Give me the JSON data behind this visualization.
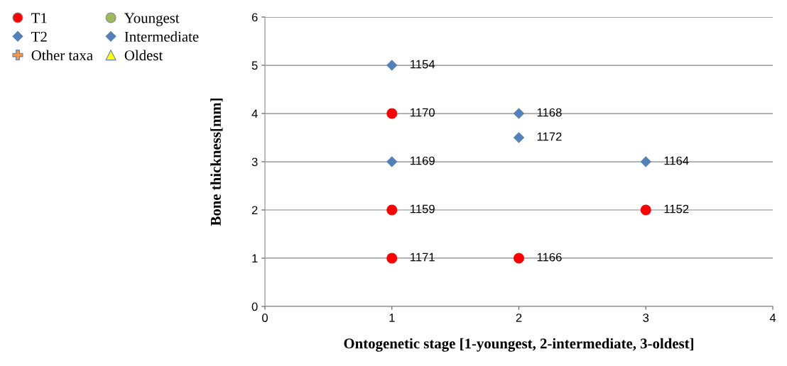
{
  "chart_data": {
    "type": "scatter",
    "xlabel": "Ontogenetic stage [1-youngest, 2-intermediate, 3-oldest]",
    "ylabel": "Bone thickness[mm]",
    "xlim": [
      0,
      4
    ],
    "ylim": [
      0,
      6
    ],
    "xticks": [
      0,
      1,
      2,
      3,
      4
    ],
    "yticks": [
      0,
      1,
      2,
      3,
      4,
      5,
      6
    ],
    "grid": "y",
    "legend": "left",
    "series": [
      {
        "name": "T1",
        "color": "#ff0000",
        "marker": "circle",
        "x": [
          1,
          1,
          1,
          2,
          3
        ],
        "values": [
          4,
          2,
          1,
          1,
          2
        ]
      },
      {
        "name": "T2",
        "color": "#4f81bd",
        "marker": "diamond",
        "x": [
          1,
          1,
          2,
          2,
          3
        ],
        "values": [
          5,
          3,
          4,
          3.5,
          3
        ]
      },
      {
        "name": "Other taxa",
        "color": "#f79646",
        "marker": "cross"
      },
      {
        "name": "Youngest",
        "color": "#9bbb59",
        "marker": "circle"
      },
      {
        "name": "Intermediate",
        "color": "#4f81bd",
        "marker": "diamond"
      },
      {
        "name": "Oldest",
        "color": "#ffff00",
        "marker": "triangle"
      }
    ],
    "annotations": [
      {
        "text": "1170",
        "x": 1,
        "y": 4
      },
      {
        "text": "1159",
        "x": 1,
        "y": 2
      },
      {
        "text": "1171",
        "x": 1,
        "y": 1
      },
      {
        "text": "1166",
        "x": 2,
        "y": 1
      },
      {
        "text": "1152",
        "x": 3,
        "y": 2
      },
      {
        "text": "1154",
        "x": 1,
        "y": 5
      },
      {
        "text": "1169",
        "x": 1,
        "y": 3
      },
      {
        "text": "1168",
        "x": 2,
        "y": 4
      },
      {
        "text": "1172",
        "x": 2,
        "y": 3.5
      },
      {
        "text": "1164",
        "x": 3,
        "y": 3
      }
    ]
  }
}
